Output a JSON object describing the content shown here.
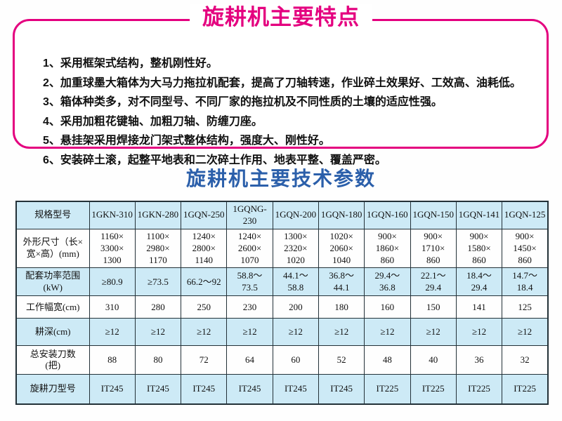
{
  "colors": {
    "accent_pink": "#e4007f",
    "title_blue": "#2b5faa",
    "cell_blue": "#cdeaf6",
    "grid_dark": "#233138"
  },
  "features": {
    "title": "旋耕机主要特点",
    "items": [
      "1、采用框架式结构，整机刚性好。",
      "2、加重球墨大箱体为大马力拖拉机配套，提高了刀轴转速，作业碎土效果好、工效高、油耗低。",
      "3、箱体种类多，对不同型号、不同厂家的拖拉机及不同性质的土壤的适应性强。",
      "4、采用加粗花键轴、加粗刀轴、防缠刀座。",
      "5、悬挂架采用焊接龙门架式整体结构，强度大、刚性好。",
      "6、安装碎土滚，起整平地表和二次碎土作用、地表平整、覆盖严密。"
    ]
  },
  "specs": {
    "title": "旋耕机主要技术参数"
  },
  "chart_data": {
    "type": "table",
    "columns": [
      "规格型号",
      "1GKN-310",
      "1GKN-280",
      "1GQN-250",
      "1GQNG-230",
      "1GQN-200",
      "1GQN-180",
      "1GQN-160",
      "1GQN-150",
      "1GQN-141",
      "1GQN-125"
    ],
    "rows": [
      {
        "label": "外形尺寸（长×\n宽×高）(mm)",
        "values": [
          "1160×\n3300×\n1300",
          "1100×\n2980×\n1170",
          "1240×\n2800×\n1140",
          "1240×\n2600×\n1070",
          "1300×\n2320×\n1020",
          "1020×\n2060×\n1040",
          "900×\n1860×\n860",
          "900×\n1710×\n860",
          "900×\n1580×\n860",
          "900×\n1450×\n860"
        ],
        "shaded": false
      },
      {
        "label": "配套功率范围\n(kW)",
        "values": [
          "≥80.9",
          "≥73.5",
          "66.2～92",
          "58.8～\n73.5",
          "44.1～\n58.8",
          "36.8～\n44.1",
          "29.4～\n36.8",
          "22.1～\n29.4",
          "18.4～\n29.4",
          "14.7～\n18.4"
        ],
        "shaded": true
      },
      {
        "label": "工作幅宽(cm)",
        "values": [
          "310",
          "280",
          "250",
          "230",
          "200",
          "180",
          "160",
          "150",
          "141",
          "125"
        ],
        "shaded": false
      },
      {
        "label": "耕深(cm)",
        "values": [
          "≥12",
          "≥12",
          "≥12",
          "≥12",
          "≥12",
          "≥12",
          "≥12",
          "≥12",
          "≥12",
          "≥12"
        ],
        "shaded": true
      },
      {
        "label": "总安装刀数\n(把)",
        "values": [
          "88",
          "80",
          "72",
          "64",
          "60",
          "52",
          "48",
          "40",
          "36",
          "32"
        ],
        "shaded": false
      },
      {
        "label": "旋耕刀型号",
        "values": [
          "IT245",
          "IT245",
          "IT245",
          "IT245",
          "IT245",
          "IT245",
          "IT225",
          "IT225",
          "IT225",
          "IT225"
        ],
        "shaded": true
      }
    ]
  }
}
